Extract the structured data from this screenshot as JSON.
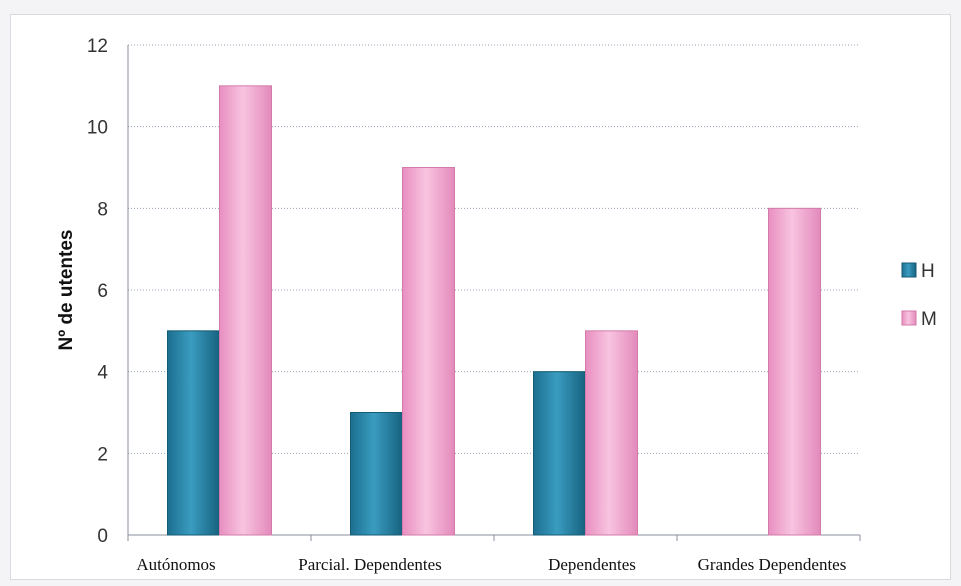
{
  "chart_data": {
    "type": "bar",
    "categories": [
      "Autónomos",
      "Parcial. Dependentes",
      "Dependentes",
      "Grandes Dependentes"
    ],
    "series": [
      {
        "name": "H",
        "values": [
          5,
          3,
          4,
          0
        ],
        "color": "#2a86a8"
      },
      {
        "name": "M",
        "values": [
          11,
          9,
          5,
          8
        ],
        "color": "#f0a8cf"
      }
    ],
    "title": "",
    "xlabel": "",
    "ylabel": "Nº de utentes",
    "ylim": [
      0,
      12
    ],
    "yticks": [
      0,
      2,
      4,
      6,
      8,
      10,
      12
    ],
    "grid": true,
    "legend": "right"
  }
}
